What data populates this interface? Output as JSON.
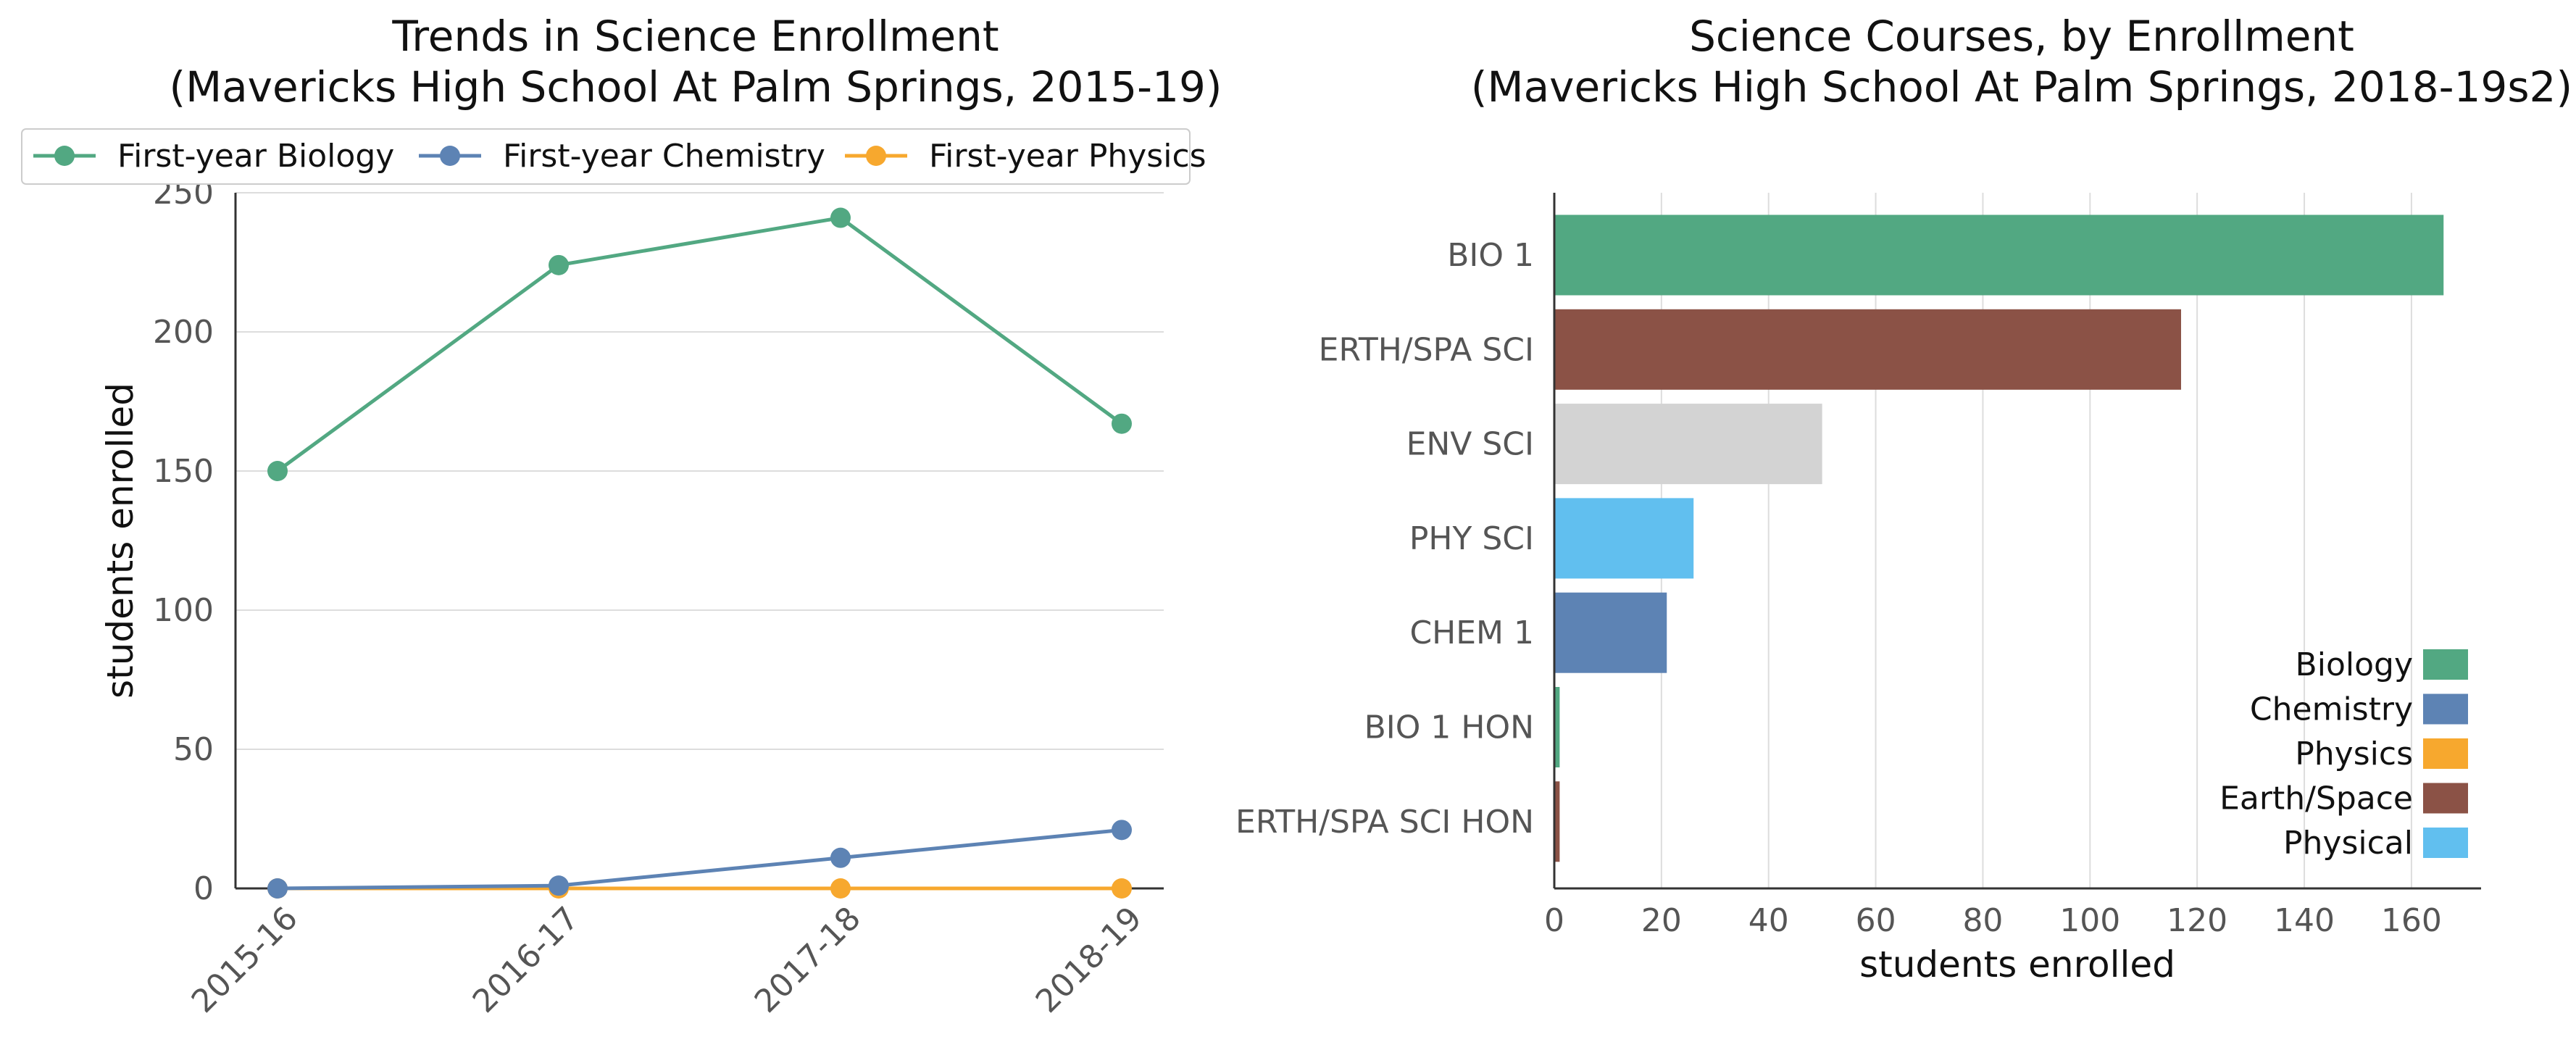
{
  "chart_data": [
    {
      "type": "line",
      "title": "Trends in Science Enrollment",
      "subtitle": "(Mavericks High School At Palm Springs, 2015-19)",
      "xlabel": "",
      "ylabel": "students enrolled",
      "categories": [
        "2015-16",
        "2016-17",
        "2017-18",
        "2018-19"
      ],
      "series": [
        {
          "name": "First-year Biology",
          "values": [
            150,
            224,
            241,
            167
          ],
          "color": "#52a882"
        },
        {
          "name": "First-year Chemistry",
          "values": [
            0,
            1,
            11,
            21
          ],
          "color": "#5d83b4"
        },
        {
          "name": "First-year Physics",
          "values": [
            0,
            0,
            0,
            0
          ],
          "color": "#f7a82e"
        }
      ],
      "ylim": [
        0,
        250
      ],
      "yticks": [
        0,
        50,
        100,
        150,
        200,
        250
      ],
      "grid": "horizontal",
      "legend": "top"
    },
    {
      "type": "bar",
      "orientation": "horizontal",
      "title": "Science Courses, by Enrollment",
      "subtitle": "(Mavericks High School At Palm Springs, 2018-19s2)",
      "xlabel": "students enrolled",
      "ylabel": "",
      "categories": [
        "BIO 1",
        "ERTH/SPA SCI",
        "ENV SCI",
        "PHY SCI",
        "CHEM 1",
        "BIO 1 HON",
        "ERTH/SPA SCI HON"
      ],
      "values": [
        166,
        117,
        50,
        26,
        21,
        1,
        1
      ],
      "bar_colors": [
        "#52a882",
        "#8b5246",
        "#d3d3d3",
        "#61bfef",
        "#5d83b4",
        "#52a882",
        "#8b5246"
      ],
      "xlim": [
        0,
        173
      ],
      "xticks": [
        0,
        20,
        40,
        60,
        80,
        100,
        120,
        140,
        160
      ],
      "grid": "vertical",
      "legend": "bottom-right",
      "legend_entries": [
        {
          "name": "Biology",
          "color": "#52a882"
        },
        {
          "name": "Chemistry",
          "color": "#5d83b4"
        },
        {
          "name": "Physics",
          "color": "#f7a82e"
        },
        {
          "name": "Earth/Space",
          "color": "#8b5246"
        },
        {
          "name": "Physical",
          "color": "#61bfef"
        }
      ]
    }
  ]
}
